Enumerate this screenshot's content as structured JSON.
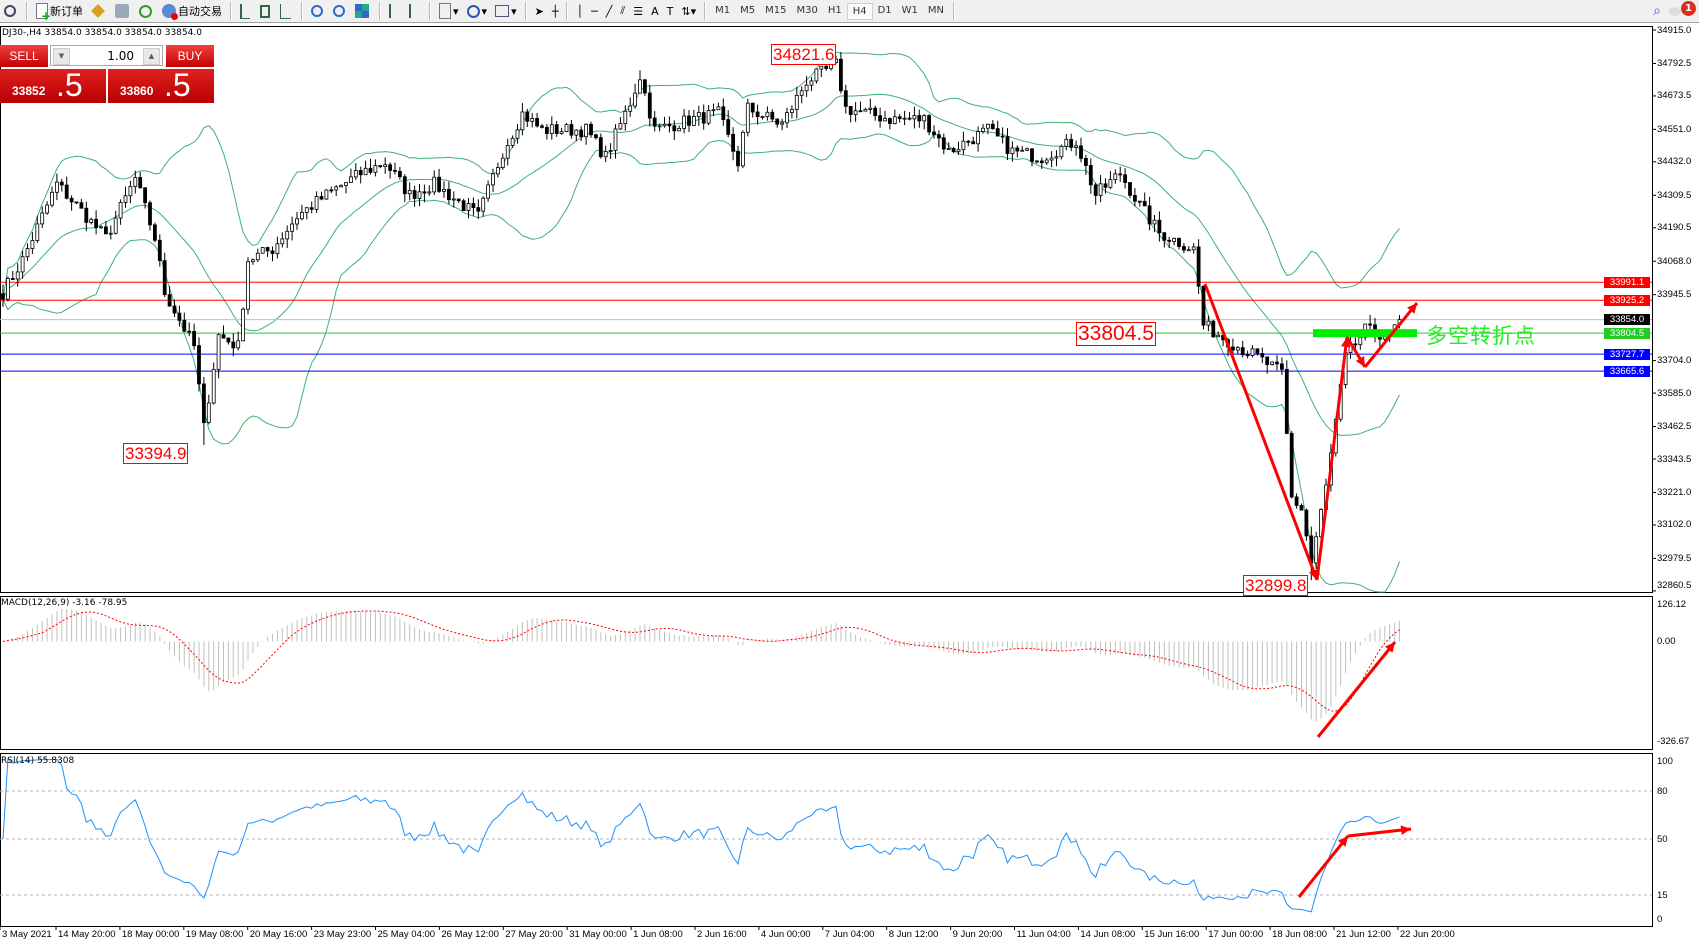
{
  "toolbar": {
    "new_order_label": "新订单",
    "auto_trading_label": "自动交易",
    "timeframes": [
      "M1",
      "M5",
      "M15",
      "M30",
      "H1",
      "H4",
      "D1",
      "W1",
      "MN"
    ],
    "active_timeframe": "H4",
    "notification_count": "1"
  },
  "chart_header": {
    "text": "DJ30-,H4  33854.0 33854.0 33854.0 33854.0"
  },
  "trade_panel": {
    "sell_label": "SELL",
    "buy_label": "BUY",
    "lot": "1.00",
    "sell_price_main": "33852",
    "sell_price_frac": ".5",
    "buy_price_main": "33860",
    "buy_price_frac": ".5"
  },
  "price_axis": [
    "34915.0",
    "34792.5",
    "34673.5",
    "34551.0",
    "34432.0",
    "34309.5",
    "34190.5",
    "34068.0",
    "33945.5",
    "33704.0",
    "33585.0",
    "33462.5",
    "33343.5",
    "33221.0",
    "33102.0",
    "32979.5",
    "32860.5"
  ],
  "horizontal_lines": [
    {
      "price": "33991.1",
      "color": "#ff0000"
    },
    {
      "price": "33925.2",
      "color": "#ff0000"
    },
    {
      "price": "33854.0",
      "color": "#000000",
      "line_color": "#c0c0c0"
    },
    {
      "price": "33804.5",
      "color": "#22cc22"
    },
    {
      "price": "33727.7",
      "color": "#0000ff"
    },
    {
      "price": "33665.6",
      "color": "#0000ff"
    }
  ],
  "annotations": {
    "high_label": "34821.6",
    "swing_low_label": "33394.9",
    "low_label": "32899.8",
    "pivot_label": "33804.5",
    "pivot_text": "多空转折点"
  },
  "macd": {
    "label": "MACD(12,26,9) -3.16 -78.95",
    "axis": [
      "126.12",
      "0.00",
      "-326.67"
    ]
  },
  "rsi": {
    "label": "RSI(14) 55.8308",
    "axis": [
      "100",
      "80",
      "50",
      "15",
      "0"
    ],
    "levels": [
      80,
      50,
      15
    ]
  },
  "time_axis": [
    "3 May 2021",
    "14 May 20:00",
    "18 May 00:00",
    "19 May 08:00",
    "20 May 16:00",
    "23 May 23:00",
    "25 May 04:00",
    "26 May 12:00",
    "27 May 20:00",
    "31 May 00:00",
    "1 Jun 08:00",
    "2 Jun 16:00",
    "4 Jun 00:00",
    "7 Jun 04:00",
    "8 Jun 12:00",
    "9 Jun 20:00",
    "11 Jun 04:00",
    "14 Jun 08:00",
    "15 Jun 16:00",
    "17 Jun 00:00",
    "18 Jun 08:00",
    "21 Jun 12:00",
    "22 Jun 20:00"
  ],
  "colors": {
    "bands": "#3cb371",
    "macd_hist": "#c0c0c0",
    "macd_signal": "#ff0000",
    "rsi": "#1e90ff",
    "arrows": "#ff0000",
    "pivot_bar": "#00ee00"
  },
  "chart_data": {
    "type": "candlestick",
    "symbol": "DJ30-",
    "timeframe": "H4",
    "close_path": [
      [
        0,
        33954
      ],
      [
        4,
        34073
      ],
      [
        11,
        34351
      ],
      [
        15,
        34272
      ],
      [
        21,
        34153
      ],
      [
        27,
        34371
      ],
      [
        31,
        34153
      ],
      [
        33,
        33954
      ],
      [
        39,
        33756
      ],
      [
        41,
        33458
      ],
      [
        44,
        33796
      ],
      [
        48,
        33756
      ],
      [
        50,
        34073
      ],
      [
        55,
        34113
      ],
      [
        60,
        34232
      ],
      [
        66,
        34311
      ],
      [
        73,
        34390
      ],
      [
        78,
        34430
      ],
      [
        83,
        34311
      ],
      [
        88,
        34351
      ],
      [
        97,
        34232
      ],
      [
        102,
        34470
      ],
      [
        106,
        34609
      ],
      [
        110,
        34549
      ],
      [
        119,
        34549
      ],
      [
        123,
        34450
      ],
      [
        128,
        34648
      ],
      [
        130,
        34747
      ],
      [
        133,
        34549
      ],
      [
        141,
        34589
      ],
      [
        146,
        34609
      ],
      [
        150,
        34430
      ],
      [
        152,
        34628
      ],
      [
        159,
        34569
      ],
      [
        164,
        34728
      ],
      [
        170,
        34787
      ],
      [
        172,
        34628
      ],
      [
        181,
        34589
      ],
      [
        188,
        34589
      ],
      [
        193,
        34470
      ],
      [
        201,
        34549
      ],
      [
        206,
        34470
      ],
      [
        212,
        34450
      ],
      [
        219,
        34509
      ],
      [
        223,
        34311
      ],
      [
        228,
        34390
      ],
      [
        232,
        34272
      ],
      [
        236,
        34172
      ],
      [
        243,
        34113
      ],
      [
        245,
        33835
      ],
      [
        252,
        33756
      ],
      [
        256,
        33716
      ],
      [
        261,
        33657
      ],
      [
        263,
        33201
      ],
      [
        265,
        33161
      ],
      [
        267,
        32963
      ],
      [
        270,
        33240
      ],
      [
        274,
        33716
      ],
      [
        278,
        33815
      ],
      [
        283,
        33796
      ],
      [
        285,
        33854
      ]
    ],
    "marked_extremes": {
      "high": 34821.6,
      "swing_low": 33394.9,
      "low": 32899.8
    },
    "price_range": [
      32860.5,
      34915.0
    ]
  }
}
